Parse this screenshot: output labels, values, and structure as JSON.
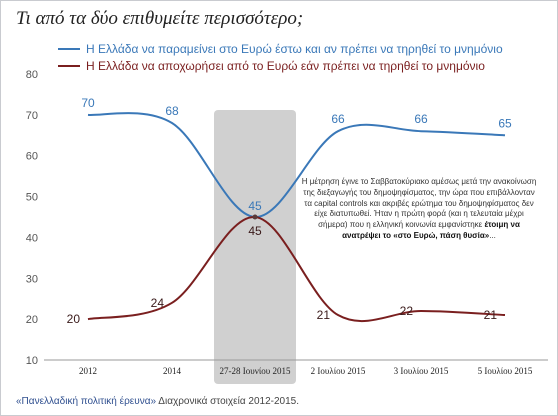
{
  "page": {
    "title": "Τι από τα δύο επιθυμείτε περισσότερο;",
    "footer_bold": "«Πανελλαδική πολιτική έρευνα»",
    "footer_rest": " Διαχρονικά στοιχεία 2012-2015.",
    "annotation_plain": "Η μέτρηση έγινε το Σαββατοκύριακο αμέσως μετά την ανακοίνωση της διεξαγωγής του δημοψηφίσματος, την ώρα που επιβάλλονταν τα capital controls και ακριβές ερώτημα του δημοψηφίσματος δεν είχε διατυπωθεί. Ήταν η πρώτη φορά (και η τελευταία μέχρι σήμερα) που η ελληνική κοινωνία εμφανίστηκε ",
    "annotation_bold": "έτοιμη να ανατρέψει το «στο Ευρώ, πάση θυσία»",
    "annotation_end": "..."
  },
  "chart_data": {
    "type": "line",
    "categories": [
      "2012",
      "2014",
      "27-28 Ιουνίου 2015",
      "2 Ιουλίου 2015",
      "3 Ιουλίου 2015",
      "5 Ιουλίου 2015"
    ],
    "series": [
      {
        "name": "Η Ελλάδα να παραμείνει στο Ευρώ έστω και αν πρέπει να τηρηθεί το μνημόνιο",
        "values": [
          70,
          68,
          45,
          66,
          66,
          65
        ],
        "color": "#3a78b8"
      },
      {
        "name": "Η Ελλάδα να αποχωρήσει από το Ευρώ εάν πρέπει να τηρηθεί το μνημόνιο",
        "values": [
          20,
          24,
          45,
          21,
          22,
          21
        ],
        "color": "#7a1f1f"
      }
    ],
    "y_ticks": [
      "10",
      "20",
      "30",
      "40",
      "50",
      "60",
      "70",
      "80"
    ],
    "ylim": [
      10,
      80
    ],
    "highlighted_category": "27-28 Ιουνίου 2015",
    "grid": false,
    "legend_placement": "top-left"
  }
}
